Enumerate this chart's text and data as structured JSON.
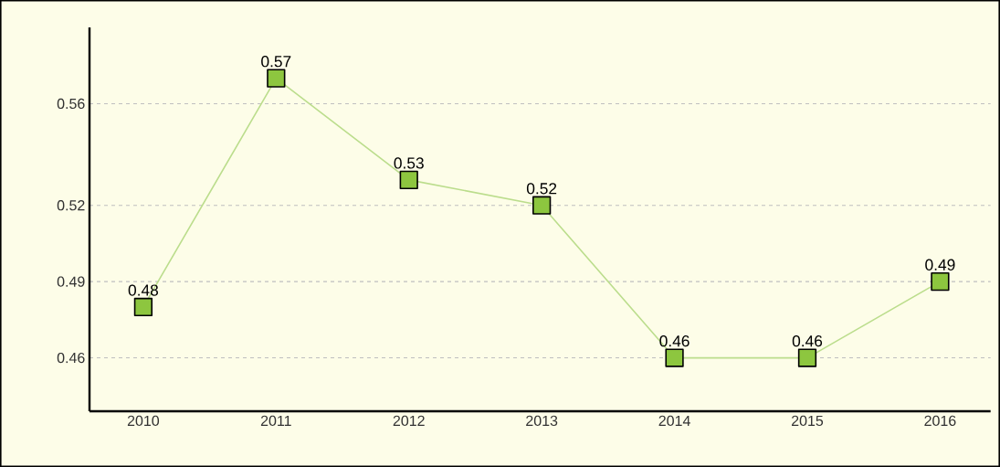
{
  "chart_data": {
    "type": "line",
    "categories": [
      "2010",
      "2011",
      "2012",
      "2013",
      "2014",
      "2015",
      "2016"
    ],
    "series": [
      {
        "color": "#8dc63f",
        "values": [
          0.48,
          0.57,
          0.53,
          0.52,
          0.46,
          0.46,
          0.49
        ]
      }
    ],
    "ylim": [
      0.439,
      0.59
    ],
    "yticks": [
      0.46,
      0.49,
      0.52,
      0.56
    ],
    "grid": "y",
    "marker": "square",
    "line_style": "solid",
    "data_labels": true
  }
}
